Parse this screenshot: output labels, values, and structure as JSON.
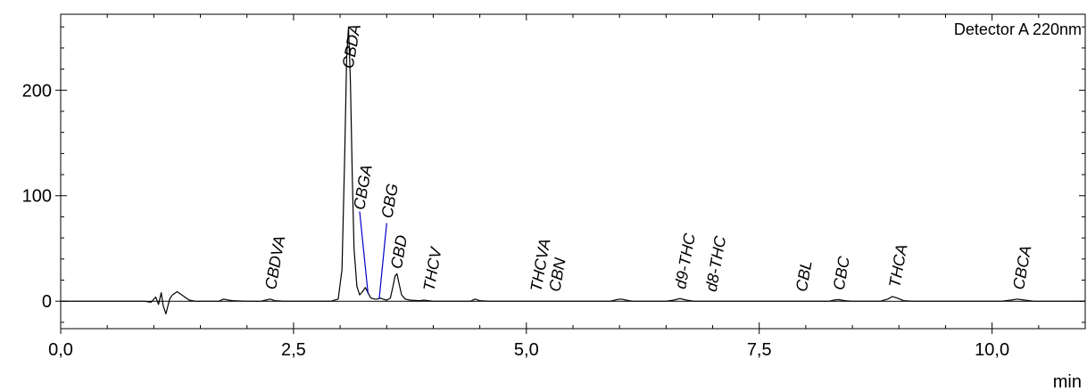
{
  "chart_data": {
    "type": "line",
    "detector_label": "Detector A 220nm",
    "xlabel": "min",
    "ylabel": "",
    "xlim": [
      0,
      11.0
    ],
    "ylim": [
      -26,
      272
    ],
    "x_ticks": [
      {
        "value": 0,
        "label": "0,0"
      },
      {
        "value": 2.5,
        "label": "2,5"
      },
      {
        "value": 5.0,
        "label": "5,0"
      },
      {
        "value": 7.5,
        "label": "7,5"
      },
      {
        "value": 10.0,
        "label": "10,0"
      }
    ],
    "y_ticks": [
      {
        "value": 0,
        "label": "0"
      },
      {
        "value": 100,
        "label": "100"
      },
      {
        "value": 200,
        "label": "200"
      }
    ],
    "grid": false,
    "series": [
      {
        "color": "#000000",
        "x": [
          0.0,
          0.9,
          0.97,
          1.02,
          1.05,
          1.08,
          1.1,
          1.13,
          1.17,
          1.2,
          1.25,
          1.3,
          1.38,
          1.45,
          1.55,
          1.7,
          1.75,
          1.8,
          1.85,
          1.9,
          2.0,
          2.15,
          2.2,
          2.25,
          2.3,
          2.4,
          2.6,
          2.9,
          2.98,
          3.02,
          3.05,
          3.07,
          3.09,
          3.11,
          3.13,
          3.15,
          3.18,
          3.21,
          3.24,
          3.27,
          3.3,
          3.33,
          3.37,
          3.4,
          3.43,
          3.46,
          3.5,
          3.54,
          3.57,
          3.59,
          3.61,
          3.63,
          3.66,
          3.7,
          3.75,
          3.85,
          3.9,
          3.95,
          4.0,
          4.2,
          4.4,
          4.45,
          4.5,
          4.6,
          5.0,
          5.9,
          5.97,
          6.02,
          6.07,
          6.14,
          6.5,
          6.58,
          6.65,
          6.72,
          6.8,
          7.4,
          8.25,
          8.3,
          8.35,
          8.42,
          8.5,
          8.8,
          8.88,
          8.93,
          8.98,
          9.05,
          9.15,
          10.1,
          10.2,
          10.27,
          10.35,
          10.45,
          11.0
        ],
        "y": [
          0,
          0,
          -1,
          4,
          -3,
          8,
          -4,
          -12,
          2,
          6,
          9,
          6,
          1,
          0,
          0,
          0,
          2,
          1,
          0.5,
          0.3,
          0,
          0,
          1,
          2,
          0.5,
          0,
          0,
          0,
          2,
          30,
          140,
          230,
          260,
          210,
          120,
          50,
          14,
          6,
          9,
          13,
          8,
          3,
          2,
          2,
          3,
          2,
          1,
          3,
          15,
          24,
          26,
          18,
          6,
          2,
          1,
          0.5,
          1,
          0.5,
          0,
          0,
          0,
          2,
          0.5,
          0,
          0,
          0,
          1.5,
          2,
          1,
          0,
          0,
          1,
          2.5,
          1,
          0,
          0,
          0,
          1,
          1.5,
          0.5,
          0,
          0,
          2,
          4.5,
          3,
          0.5,
          0,
          0,
          1,
          2,
          1,
          0,
          0
        ]
      },
      {
        "color": "#0000cc",
        "x": [
          3.21,
          3.3
        ],
        "y": [
          85,
          7
        ]
      },
      {
        "color": "#0000cc",
        "x": [
          3.42,
          3.5
        ],
        "y": [
          2,
          74
        ]
      }
    ],
    "annotations": [
      {
        "text": "CBDVA",
        "x": 2.25
      },
      {
        "text": "CBDA",
        "x": 3.08
      },
      {
        "text": "CBGA",
        "x": 3.2
      },
      {
        "text": "CBG",
        "x": 3.5
      },
      {
        "text": "CBD",
        "x": 3.6
      },
      {
        "text": "THCV",
        "x": 3.95
      },
      {
        "text": "THCVA",
        "x": 5.1
      },
      {
        "text": "CBN",
        "x": 5.3
      },
      {
        "text": "d9-THC",
        "x": 6.65
      },
      {
        "text": "d8-THC",
        "x": 6.98
      },
      {
        "text": "CBL",
        "x": 7.95
      },
      {
        "text": "CBC",
        "x": 8.35
      },
      {
        "text": "THCA",
        "x": 8.95
      },
      {
        "text": "CBCA",
        "x": 10.28
      }
    ]
  }
}
